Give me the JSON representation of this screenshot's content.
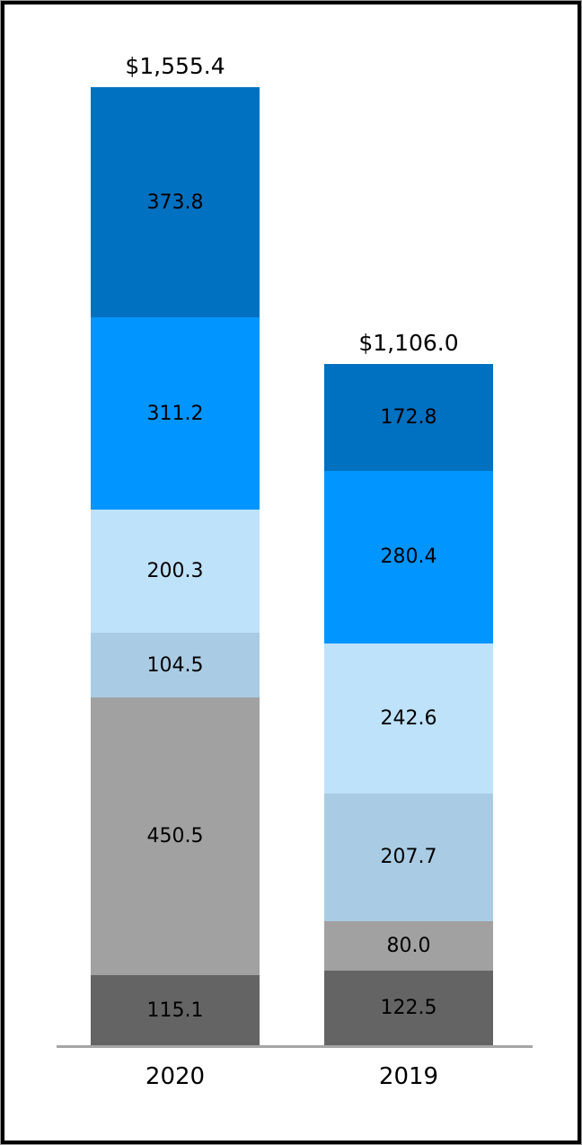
{
  "colors": {
    "background": "#FFFFFF",
    "frame_border": "#000000",
    "axis_line": "#A6A6A6",
    "label_text": "#000000",
    "palette_top_to_bottom": [
      "#0070C0",
      "#0095FF",
      "#BFE2FB",
      "#A9CCE4",
      "#A1A1A1",
      "#646464"
    ]
  },
  "chart_data": {
    "type": "bar",
    "subtype": "stacked-vertical-columns",
    "title": "",
    "xlabel": "",
    "ylabel": "",
    "legend": "none",
    "gridlines": "off",
    "value_label_position": "inside-center",
    "total_label_position": "above-bar",
    "categories": [
      "2020",
      "2019"
    ],
    "bars": [
      {
        "category": "2020",
        "total": 1555.4,
        "total_label": "$1,555.4",
        "segments": [
          {
            "label": "373.8",
            "value": 373.8,
            "color": "#0070C0"
          },
          {
            "label": "311.2",
            "value": 311.2,
            "color": "#0095FF"
          },
          {
            "label": "200.3",
            "value": 200.3,
            "color": "#BFE2FB"
          },
          {
            "label": "104.5",
            "value": 104.5,
            "color": "#A9CCE4"
          },
          {
            "label": "450.5",
            "value": 450.5,
            "color": "#A1A1A1"
          },
          {
            "label": "115.1",
            "value": 115.1,
            "color": "#646464"
          }
        ]
      },
      {
        "category": "2019",
        "total": 1106.0,
        "total_label": "$1,106.0",
        "segments": [
          {
            "label": "172.8",
            "value": 172.8,
            "color": "#0070C0"
          },
          {
            "label": "280.4",
            "value": 280.4,
            "color": "#0095FF"
          },
          {
            "label": "242.6",
            "value": 242.6,
            "color": "#BFE2FB"
          },
          {
            "label": "207.7",
            "value": 207.7,
            "color": "#A9CCE4"
          },
          {
            "label": "80.0",
            "value": 80.0,
            "color": "#A1A1A1"
          },
          {
            "label": "122.5",
            "value": 122.5,
            "color": "#646464"
          }
        ]
      }
    ]
  }
}
